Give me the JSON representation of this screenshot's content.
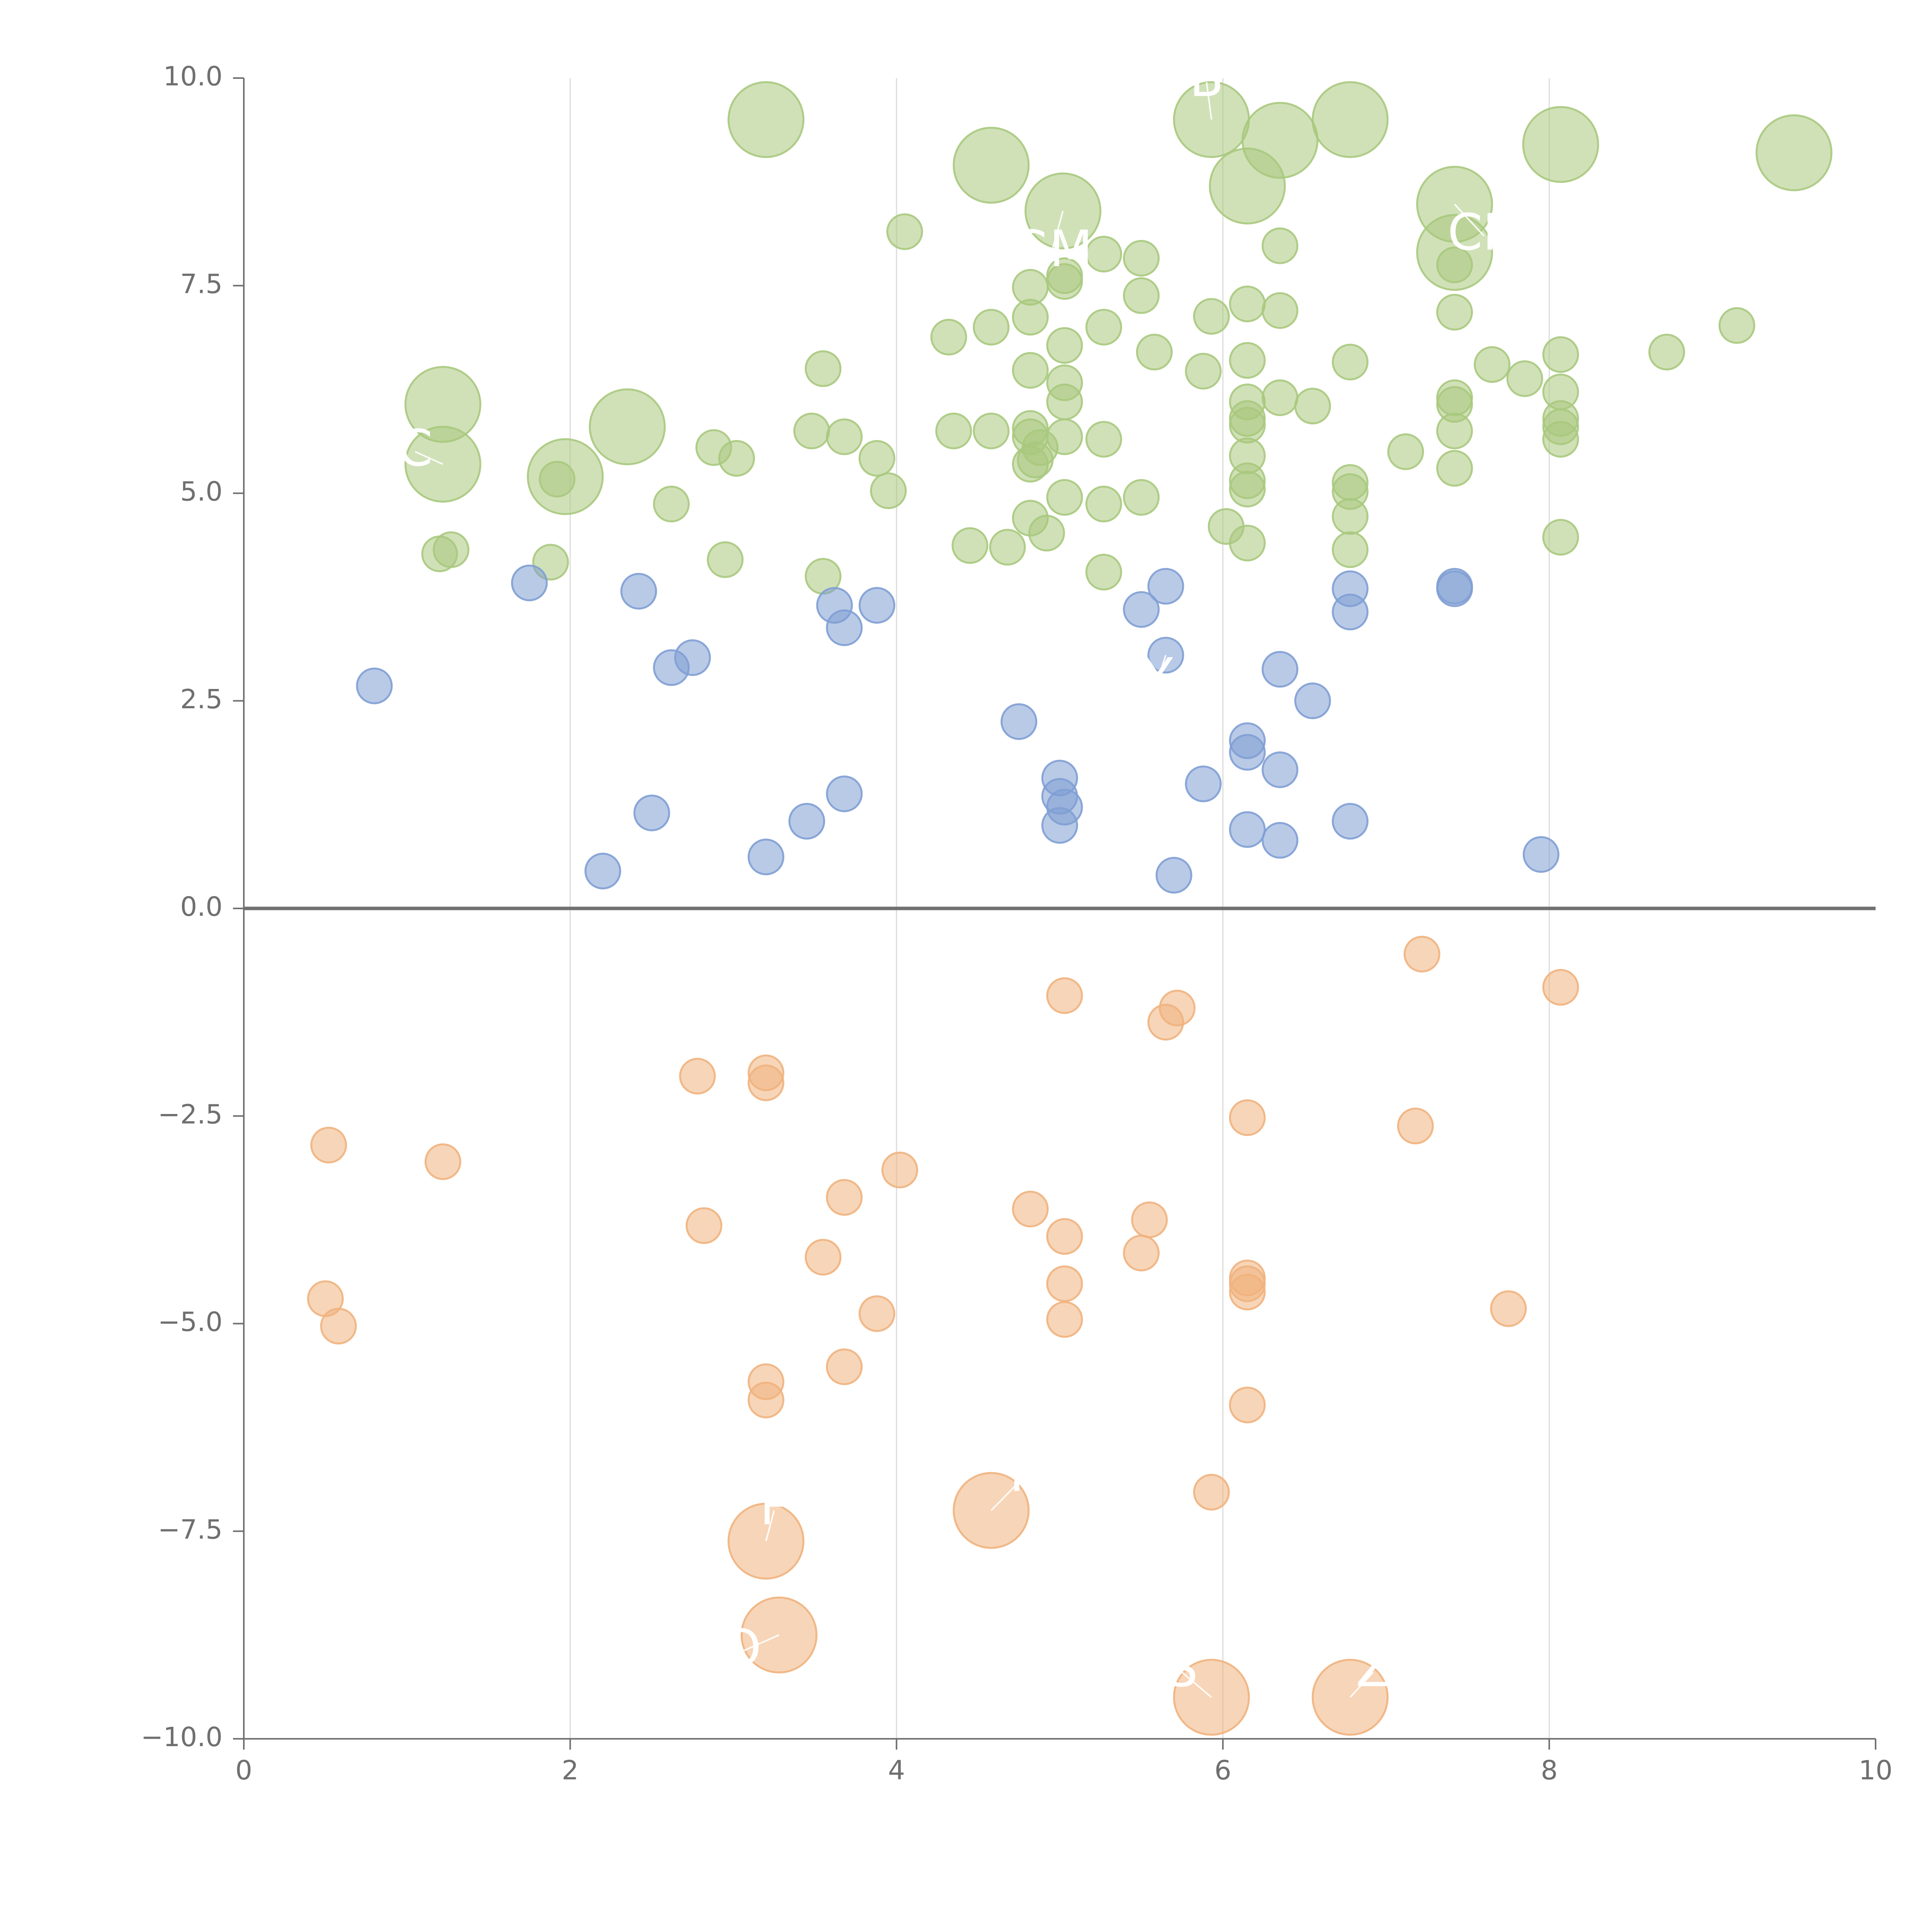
{
  "chart_data": {
    "type": "scatter",
    "title": "",
    "xlabel": "",
    "ylabel": "",
    "xlim": [
      0,
      10
    ],
    "ylim": [
      -10,
      10
    ],
    "x_ticks": [
      0,
      2,
      4,
      6,
      8,
      10
    ],
    "x_tick_labels": [
      "0",
      "2",
      "4",
      "6",
      "8",
      "10"
    ],
    "y_ticks": [
      -10,
      -7.5,
      -5,
      -2.5,
      0,
      2.5,
      5,
      7.5,
      10
    ],
    "y_tick_labels": [
      "−10.0",
      "−7.5",
      "−5.0",
      "−2.5",
      "0.0",
      "2.5",
      "5.0",
      "7.5",
      "10.0"
    ],
    "grid": "vertical",
    "reference_line_y": 0,
    "series": [
      {
        "color": "#a9c97e",
        "points": [
          [
            3.2,
            9.5,
            2
          ],
          [
            4.58,
            8.95,
            2
          ],
          [
            5.02,
            8.4,
            2
          ],
          [
            5.93,
            9.5,
            2
          ],
          [
            6.35,
            9.25,
            2
          ],
          [
            6.78,
            9.5,
            2
          ],
          [
            6.15,
            8.7,
            2
          ],
          [
            7.42,
            8.48,
            2
          ],
          [
            8.07,
            9.2,
            2
          ],
          [
            9.5,
            9.1,
            2
          ],
          [
            7.42,
            7.9,
            2
          ],
          [
            1.22,
            6.07,
            2
          ],
          [
            1.22,
            5.35,
            2
          ],
          [
            2.35,
            5.8,
            2
          ],
          [
            1.97,
            5.2,
            2
          ],
          [
            4.05,
            8.15,
            1
          ],
          [
            5.27,
            7.88,
            1
          ],
          [
            5.5,
            7.83,
            1
          ],
          [
            6.35,
            7.98,
            1
          ],
          [
            4.82,
            7.48,
            1
          ],
          [
            5.03,
            7.55,
            1
          ],
          [
            5.03,
            7.62,
            1
          ],
          [
            4.32,
            6.88,
            1
          ],
          [
            4.58,
            7.0,
            1
          ],
          [
            4.82,
            7.12,
            1
          ],
          [
            5.27,
            7.0,
            1
          ],
          [
            5.5,
            7.38,
            1
          ],
          [
            5.93,
            7.13,
            1
          ],
          [
            6.15,
            7.28,
            1
          ],
          [
            6.35,
            7.2,
            1
          ],
          [
            7.42,
            7.18,
            1
          ],
          [
            7.42,
            7.75,
            1
          ],
          [
            3.55,
            6.5,
            1
          ],
          [
            5.03,
            6.78,
            1
          ],
          [
            5.58,
            6.7,
            1
          ],
          [
            4.82,
            6.48,
            1
          ],
          [
            5.88,
            6.47,
            1
          ],
          [
            6.15,
            6.6,
            1
          ],
          [
            6.78,
            6.58,
            1
          ],
          [
            7.65,
            6.55,
            1
          ],
          [
            7.85,
            6.38,
            1
          ],
          [
            8.07,
            6.67,
            1
          ],
          [
            8.07,
            6.22,
            1
          ],
          [
            8.72,
            6.7,
            1
          ],
          [
            9.15,
            7.02,
            1
          ],
          [
            5.03,
            6.33,
            1
          ],
          [
            5.03,
            6.1,
            1
          ],
          [
            6.15,
            6.1,
            1
          ],
          [
            6.35,
            6.15,
            1
          ],
          [
            6.55,
            6.05,
            1
          ],
          [
            6.15,
            5.9,
            1
          ],
          [
            6.15,
            5.82,
            1
          ],
          [
            7.42,
            6.15,
            1
          ],
          [
            7.42,
            6.07,
            1
          ],
          [
            3.48,
            5.75,
            1
          ],
          [
            3.68,
            5.68,
            1
          ],
          [
            4.35,
            5.75,
            1
          ],
          [
            4.58,
            5.75,
            1
          ],
          [
            4.82,
            5.78,
            1
          ],
          [
            4.82,
            5.68,
            1
          ],
          [
            4.88,
            5.55,
            1
          ],
          [
            5.03,
            5.68,
            1
          ],
          [
            5.27,
            5.65,
            1
          ],
          [
            4.82,
            5.35,
            1
          ],
          [
            4.85,
            5.4,
            1
          ],
          [
            6.15,
            5.45,
            1
          ],
          [
            6.15,
            5.15,
            1
          ],
          [
            6.15,
            5.05,
            1
          ],
          [
            7.12,
            5.5,
            1
          ],
          [
            7.42,
            5.75,
            1
          ],
          [
            7.42,
            5.3,
            1
          ],
          [
            8.07,
            5.9,
            1
          ],
          [
            8.07,
            5.8,
            1
          ],
          [
            8.07,
            5.65,
            1
          ],
          [
            2.88,
            5.55,
            1
          ],
          [
            3.02,
            5.42,
            1
          ],
          [
            3.88,
            5.42,
            1
          ],
          [
            1.92,
            5.17,
            1
          ],
          [
            2.62,
            4.87,
            1
          ],
          [
            3.95,
            5.03,
            1
          ],
          [
            5.03,
            4.95,
            1
          ],
          [
            5.27,
            4.87,
            1
          ],
          [
            5.5,
            4.95,
            1
          ],
          [
            6.78,
            5.13,
            1
          ],
          [
            6.78,
            5.02,
            1
          ],
          [
            4.82,
            4.7,
            1
          ],
          [
            4.92,
            4.52,
            1
          ],
          [
            6.02,
            4.6,
            1
          ],
          [
            6.15,
            4.4,
            1
          ],
          [
            6.78,
            4.72,
            1
          ],
          [
            6.78,
            4.32,
            1
          ],
          [
            8.07,
            4.47,
            1
          ],
          [
            1.2,
            4.27,
            1
          ],
          [
            1.27,
            4.32,
            1
          ],
          [
            1.88,
            4.17,
            1
          ],
          [
            2.95,
            4.2,
            1
          ],
          [
            3.55,
            4.0,
            1
          ],
          [
            4.45,
            4.37,
            1
          ],
          [
            4.68,
            4.35,
            1
          ],
          [
            5.27,
            4.05,
            1
          ]
        ]
      },
      {
        "color": "#7f9fd4",
        "points": [
          [
            0.8,
            2.68,
            1
          ],
          [
            1.75,
            3.92,
            1
          ],
          [
            2.42,
            3.82,
            1
          ],
          [
            2.62,
            2.9,
            1
          ],
          [
            2.75,
            3.02,
            1
          ],
          [
            3.62,
            3.65,
            1
          ],
          [
            3.68,
            3.38,
            1
          ],
          [
            3.88,
            3.65,
            1
          ],
          [
            5.5,
            3.6,
            1
          ],
          [
            5.65,
            3.88,
            1
          ],
          [
            5.65,
            3.05,
            1
          ],
          [
            6.78,
            3.85,
            1
          ],
          [
            6.78,
            3.57,
            1
          ],
          [
            7.42,
            3.85,
            1
          ],
          [
            7.42,
            3.88,
            1
          ],
          [
            6.35,
            2.88,
            1
          ],
          [
            6.55,
            2.5,
            1
          ],
          [
            4.75,
            2.25,
            1
          ],
          [
            6.15,
            2.02,
            1
          ],
          [
            6.15,
            1.88,
            1
          ],
          [
            6.35,
            1.67,
            1
          ],
          [
            5.88,
            1.5,
            1
          ],
          [
            5.0,
            1.57,
            1
          ],
          [
            5.0,
            1.35,
            1
          ],
          [
            5.03,
            1.22,
            1
          ],
          [
            5.0,
            1.0,
            1
          ],
          [
            3.68,
            1.38,
            1
          ],
          [
            3.45,
            1.05,
            1
          ],
          [
            2.5,
            1.15,
            1
          ],
          [
            2.2,
            0.45,
            1
          ],
          [
            3.2,
            0.62,
            1
          ],
          [
            5.7,
            0.4,
            1
          ],
          [
            6.15,
            0.95,
            1
          ],
          [
            6.35,
            0.82,
            1
          ],
          [
            6.78,
            1.05,
            1
          ],
          [
            7.95,
            0.65,
            1
          ]
        ]
      },
      {
        "color": "#f0b37e",
        "points": [
          [
            7.22,
            -0.55,
            1
          ],
          [
            8.07,
            -0.95,
            1
          ],
          [
            5.03,
            -1.05,
            1
          ],
          [
            5.72,
            -1.2,
            1
          ],
          [
            5.65,
            -1.37,
            1
          ],
          [
            2.78,
            -2.02,
            1
          ],
          [
            3.2,
            -1.98,
            1
          ],
          [
            3.2,
            -2.1,
            1
          ],
          [
            6.15,
            -2.52,
            1
          ],
          [
            7.18,
            -2.62,
            1
          ],
          [
            0.52,
            -2.85,
            1
          ],
          [
            1.22,
            -3.05,
            1
          ],
          [
            4.02,
            -3.15,
            1
          ],
          [
            3.68,
            -3.48,
            1
          ],
          [
            2.82,
            -3.82,
            1
          ],
          [
            4.82,
            -3.62,
            1
          ],
          [
            5.03,
            -3.95,
            1
          ],
          [
            5.55,
            -3.75,
            1
          ],
          [
            3.55,
            -4.2,
            1
          ],
          [
            5.5,
            -4.15,
            1
          ],
          [
            5.03,
            -4.52,
            1
          ],
          [
            6.15,
            -4.45,
            1
          ],
          [
            6.15,
            -4.52,
            1
          ],
          [
            6.15,
            -4.62,
            1
          ],
          [
            0.5,
            -4.7,
            1
          ],
          [
            0.58,
            -5.03,
            1
          ],
          [
            3.88,
            -4.88,
            1
          ],
          [
            5.03,
            -4.95,
            1
          ],
          [
            7.75,
            -4.82,
            1
          ],
          [
            3.68,
            -5.52,
            1
          ],
          [
            3.2,
            -5.7,
            1
          ],
          [
            3.2,
            -5.92,
            1
          ],
          [
            6.15,
            -5.98,
            1
          ],
          [
            5.93,
            -7.03,
            1
          ],
          [
            4.58,
            -7.25,
            2
          ],
          [
            3.2,
            -7.62,
            2
          ],
          [
            3.28,
            -8.75,
            2
          ],
          [
            5.93,
            -9.5,
            2
          ],
          [
            6.78,
            -9.5,
            2
          ]
        ]
      }
    ],
    "annotations": [
      {
        "text": "B",
        "x": 5.93,
        "y": 9.5,
        "tx": 5.9,
        "ty": 9.95
      },
      {
        "text": "GM",
        "x": 5.02,
        "y": 8.4,
        "tx": 4.95,
        "ty": 7.9
      },
      {
        "text": "C",
        "x": 1.22,
        "y": 5.35,
        "tx": 1.05,
        "ty": 5.5
      },
      {
        "text": "CH",
        "x": 7.42,
        "y": 8.48,
        "tx": 7.6,
        "ty": 8.1
      },
      {
        "text": "Y",
        "x": 5.65,
        "y": 3.05,
        "tx": 5.6,
        "ty": 2.75
      },
      {
        "text": "F",
        "x": 4.58,
        "y": -7.25,
        "tx": 4.78,
        "ty": -6.85
      },
      {
        "text": "F",
        "x": 3.2,
        "y": -7.62,
        "tx": 3.25,
        "ty": -7.25
      },
      {
        "text": "O",
        "x": 3.28,
        "y": -8.75,
        "tx": 3.05,
        "ty": -8.95
      },
      {
        "text": "S",
        "x": 5.93,
        "y": -9.5,
        "tx": 5.75,
        "ty": -9.2
      },
      {
        "text": "Z",
        "x": 6.78,
        "y": -9.5,
        "tx": 6.92,
        "ty": -9.2
      }
    ]
  }
}
